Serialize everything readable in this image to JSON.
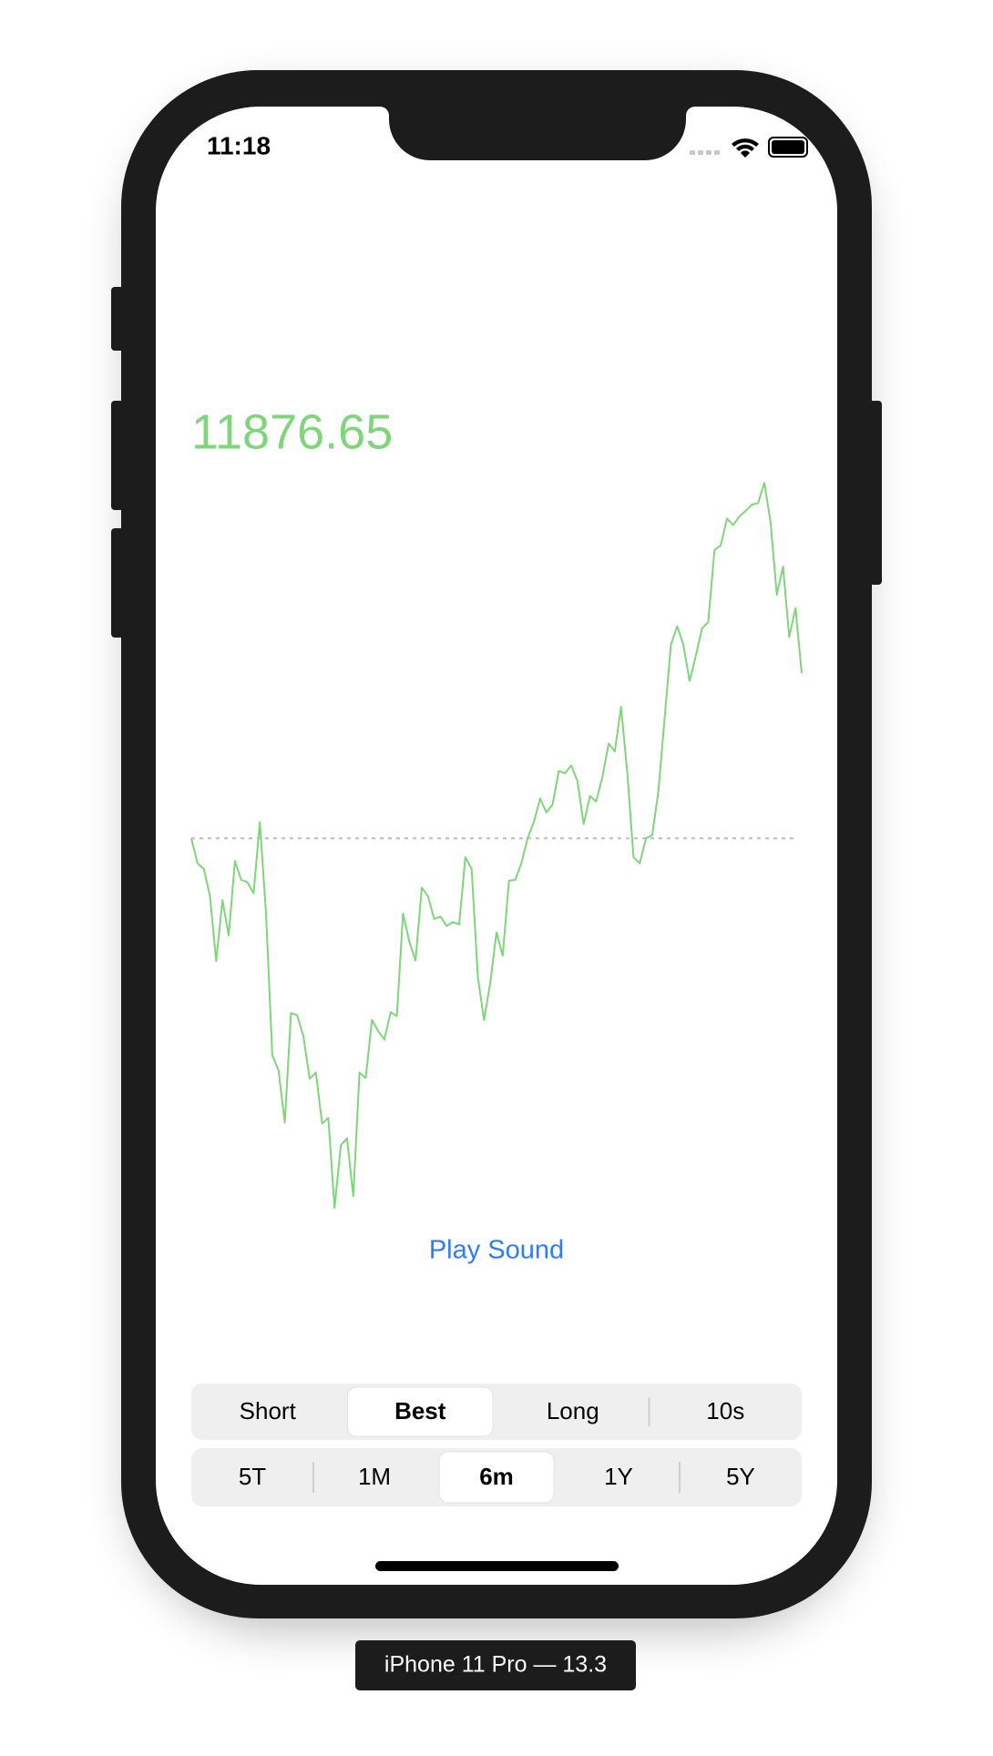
{
  "status_bar": {
    "time": "11:18"
  },
  "price": "11876.65",
  "chart_data": {
    "type": "line",
    "color": "#7fd67a",
    "ylim": [
      0,
      100
    ],
    "values": [
      50.3,
      47.1,
      46.4,
      42.9,
      34.6,
      42.4,
      37.9,
      47.4,
      45,
      44.7,
      43.3,
      52.4,
      40.7,
      22.6,
      20.7,
      14,
      28,
      27.7,
      25,
      19.6,
      20.4,
      13.9,
      14.6,
      3.1,
      11.1,
      12,
      4.6,
      20.4,
      19.7,
      27.1,
      25.7,
      24.6,
      28.1,
      27.6,
      40.7,
      37.1,
      34.7,
      44,
      42.9,
      40,
      40.3,
      39.1,
      39.6,
      39.3,
      47.9,
      46.4,
      32.6,
      27.1,
      31.9,
      38.3,
      35.3,
      44.9,
      45,
      47.1,
      50.3,
      52.4,
      55.4,
      53.6,
      54.6,
      58.9,
      58.6,
      59.6,
      57.6,
      52.1,
      55.7,
      55,
      58.1,
      62.4,
      61.4,
      67.1,
      58.6,
      47.9,
      47.1,
      50.3,
      50.7,
      56.4,
      65.7,
      75,
      77.4,
      75,
      70.4,
      73.6,
      77.1,
      77.9,
      87.1,
      87.7,
      91.1,
      90.3,
      91.4,
      92.1,
      92.9,
      93.1,
      95.7,
      90.7,
      81.4,
      85,
      76,
      79.7,
      71.4
    ]
  },
  "button": "Play Sound",
  "segments": [
    {
      "items": [
        "Short",
        "Best",
        "Long",
        "10s"
      ],
      "selected": 1
    },
    {
      "items": [
        "5T",
        "1M",
        "6m",
        "1Y",
        "5Y"
      ],
      "selected": 2
    }
  ],
  "device_label": "iPhone 11 Pro — 13.3"
}
